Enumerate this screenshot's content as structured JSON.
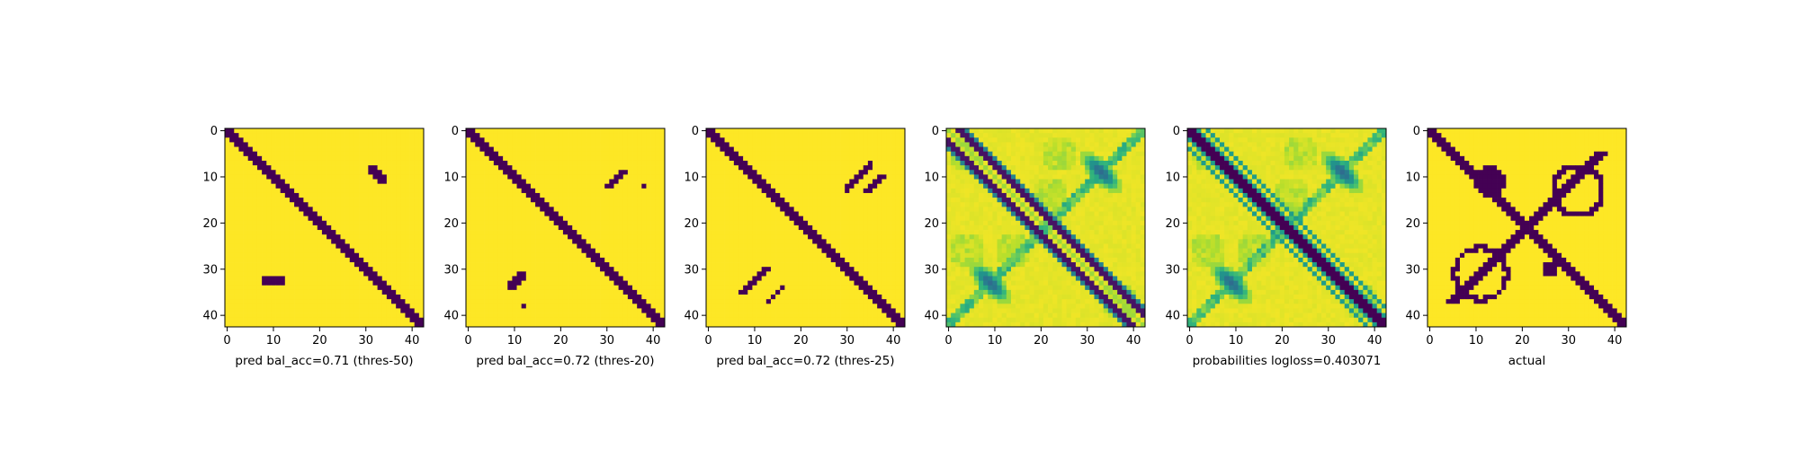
{
  "figure": {
    "colors": {
      "yellow": "#fde725",
      "purple": "#440154"
    }
  },
  "chart_data": [
    {
      "type": "heatmap",
      "title": "pred bal_acc=0.71 (thres-50)",
      "colormap": "viridis",
      "size": 43,
      "xticks": [
        0,
        10,
        20,
        30,
        40
      ],
      "yticks": [
        0,
        10,
        20,
        30,
        40
      ],
      "xlim": [
        0,
        42
      ],
      "ylim": [
        0,
        42
      ],
      "mode": "binary",
      "diagonal_halfwidth": 1,
      "blobs": [
        {
          "cx": 32.5,
          "cy": 9.5,
          "dx": 1,
          "dy": 1,
          "hw": 1.0,
          "len": 2.5
        },
        {
          "cx": 10,
          "cy": 32.5,
          "dx": 1,
          "dy": 0,
          "hw": 0.9,
          "len": 2.5
        }
      ]
    },
    {
      "type": "heatmap",
      "title": "pred bal_acc=0.72 (thres-20)",
      "colormap": "viridis",
      "size": 43,
      "xticks": [
        0,
        10,
        20,
        30,
        40
      ],
      "yticks": [
        0,
        10,
        20,
        30,
        40
      ],
      "xlim": [
        0,
        42
      ],
      "ylim": [
        0,
        42
      ],
      "mode": "binary",
      "diagonal_halfwidth": 1.5,
      "blobs": [
        {
          "cx": 32,
          "cy": 10.5,
          "dx": 1,
          "dy": -1,
          "hw": 0.9,
          "len": 2.5
        },
        {
          "cx": 10.5,
          "cy": 32.5,
          "dx": 1,
          "dy": -1,
          "hw": 0.9,
          "len": 2.5
        }
      ],
      "dots": [
        [
          38,
          12
        ],
        [
          12,
          38
        ]
      ]
    },
    {
      "type": "heatmap",
      "title": "pred bal_acc=0.72 (thres-25)",
      "colormap": "viridis",
      "size": 43,
      "xticks": [
        0,
        10,
        20,
        30,
        40
      ],
      "yticks": [
        0,
        10,
        20,
        30,
        40
      ],
      "xlim": [
        0,
        42
      ],
      "ylim": [
        0,
        42
      ],
      "mode": "binary",
      "diagonal_halfwidth": 1.5,
      "blobs": [
        {
          "cx": 32.5,
          "cy": 10,
          "dx": 1,
          "dy": -1,
          "hw": 1.0,
          "len": 4
        },
        {
          "cx": 10,
          "cy": 32.5,
          "dx": 1,
          "dy": -1,
          "hw": 1.0,
          "len": 4
        },
        {
          "cx": 36,
          "cy": 11.5,
          "dx": 1,
          "dy": -1,
          "hw": 0.5,
          "len": 2.5
        },
        {
          "cx": 14.5,
          "cy": 35.5,
          "dx": 1,
          "dy": -1,
          "hw": 0.5,
          "len": 2.5
        }
      ]
    },
    {
      "type": "heatmap",
      "title": "",
      "colormap": "viridis",
      "size": 43,
      "xticks": [
        0,
        10,
        20,
        30,
        40
      ],
      "yticks": [
        0,
        10,
        20,
        30,
        40
      ],
      "xlim": [
        0,
        42
      ],
      "ylim": [
        0,
        42
      ],
      "mode": "continuous",
      "main_diagonal": "none",
      "offset_diagonals": [
        2,
        3
      ]
    },
    {
      "type": "heatmap",
      "title": "probabilities logloss=0.403071",
      "colormap": "viridis",
      "size": 43,
      "xticks": [
        0,
        10,
        20,
        30,
        40
      ],
      "yticks": [
        0,
        10,
        20,
        30,
        40
      ],
      "xlim": [
        0,
        42
      ],
      "ylim": [
        0,
        42
      ],
      "mode": "continuous",
      "main_diagonal": "wide",
      "offset_diagonals": [
        4
      ]
    },
    {
      "type": "heatmap",
      "title": "actual",
      "colormap": "viridis",
      "size": 43,
      "xticks": [
        0,
        10,
        20,
        30,
        40
      ],
      "yticks": [
        0,
        10,
        20,
        30,
        40
      ],
      "xlim": [
        0,
        42
      ],
      "ylim": [
        0,
        42
      ],
      "mode": "actual"
    }
  ]
}
